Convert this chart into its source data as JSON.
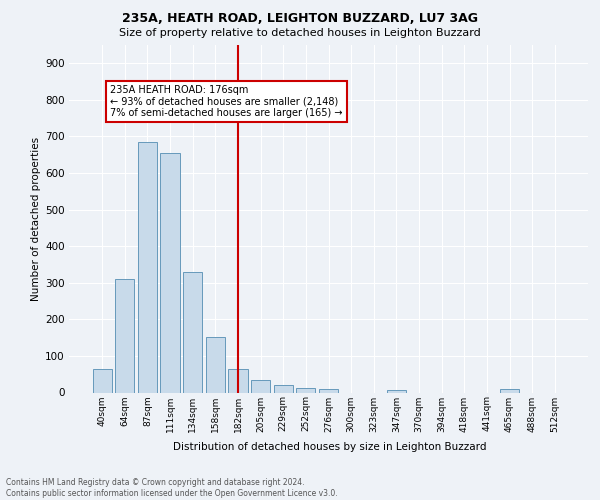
{
  "title1": "235A, HEATH ROAD, LEIGHTON BUZZARD, LU7 3AG",
  "title2": "Size of property relative to detached houses in Leighton Buzzard",
  "xlabel": "Distribution of detached houses by size in Leighton Buzzard",
  "ylabel": "Number of detached properties",
  "footnote": "Contains HM Land Registry data © Crown copyright and database right 2024.\nContains public sector information licensed under the Open Government Licence v3.0.",
  "bar_labels": [
    "40sqm",
    "64sqm",
    "87sqm",
    "111sqm",
    "134sqm",
    "158sqm",
    "182sqm",
    "205sqm",
    "229sqm",
    "252sqm",
    "276sqm",
    "300sqm",
    "323sqm",
    "347sqm",
    "370sqm",
    "394sqm",
    "418sqm",
    "441sqm",
    "465sqm",
    "488sqm",
    "512sqm"
  ],
  "bar_values": [
    65,
    310,
    685,
    655,
    330,
    152,
    65,
    33,
    20,
    11,
    9,
    0,
    0,
    6,
    0,
    0,
    0,
    0,
    10,
    0,
    0
  ],
  "bar_color": "#c8daea",
  "bar_edge_color": "#6699bb",
  "highlight_bar_index": 6,
  "highlight_color": "#cc0000",
  "annotation_text": "235A HEATH ROAD: 176sqm\n← 93% of detached houses are smaller (2,148)\n7% of semi-detached houses are larger (165) →",
  "annotation_box_color": "#cc0000",
  "ylim": [
    0,
    950
  ],
  "yticks": [
    0,
    100,
    200,
    300,
    400,
    500,
    600,
    700,
    800,
    900
  ],
  "bg_color": "#eef2f7",
  "plot_bg_color": "#eef2f7",
  "grid_color": "#ffffff"
}
